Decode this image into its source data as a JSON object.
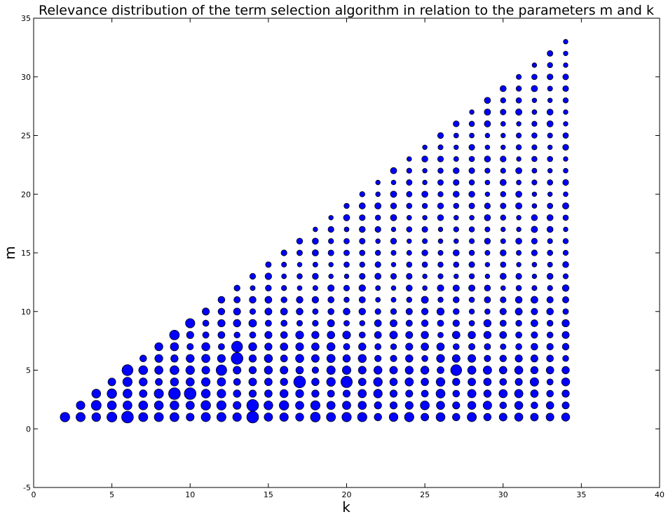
{
  "chart_data": {
    "type": "scatter",
    "title": "Relevance distribution of the term selection algorithm in relation to the parameters m and k",
    "xlabel": "k",
    "ylabel": "m",
    "xlim": [
      0,
      40
    ],
    "ylim": [
      -5,
      35
    ],
    "xticks": [
      0,
      5,
      10,
      15,
      20,
      25,
      30,
      35,
      40
    ],
    "yticks": [
      -5,
      0,
      5,
      10,
      15,
      20,
      25,
      30,
      35
    ],
    "grid": false,
    "marker_color": "#0000ff",
    "marker_edge_color": "#000000",
    "points_description": "one bubble for every integer pair with 2 <= k <= 34 and 1 <= m <= k-1; bubble area encodes relevance",
    "k_range": [
      2,
      34
    ],
    "m_range": [
      1,
      33
    ],
    "large_bubbles": [
      {
        "k": 6,
        "m": 1,
        "size": 1.0
      },
      {
        "k": 9,
        "m": 3,
        "size": 1.0
      },
      {
        "k": 10,
        "m": 3,
        "size": 1.0
      },
      {
        "k": 13,
        "m": 6,
        "size": 1.0
      },
      {
        "k": 14,
        "m": 1,
        "size": 1.0
      },
      {
        "k": 14,
        "m": 2,
        "size": 1.0
      },
      {
        "k": 17,
        "m": 4,
        "size": 1.0
      },
      {
        "k": 20,
        "m": 4,
        "size": 0.95
      },
      {
        "k": 6,
        "m": 5,
        "size": 0.9
      },
      {
        "k": 13,
        "m": 7,
        "size": 0.9
      },
      {
        "k": 27,
        "m": 5,
        "size": 0.9
      },
      {
        "k": 12,
        "m": 5,
        "size": 0.85
      },
      {
        "k": 10,
        "m": 9,
        "size": 0.7
      },
      {
        "k": 9,
        "m": 8,
        "size": 0.75
      }
    ]
  }
}
